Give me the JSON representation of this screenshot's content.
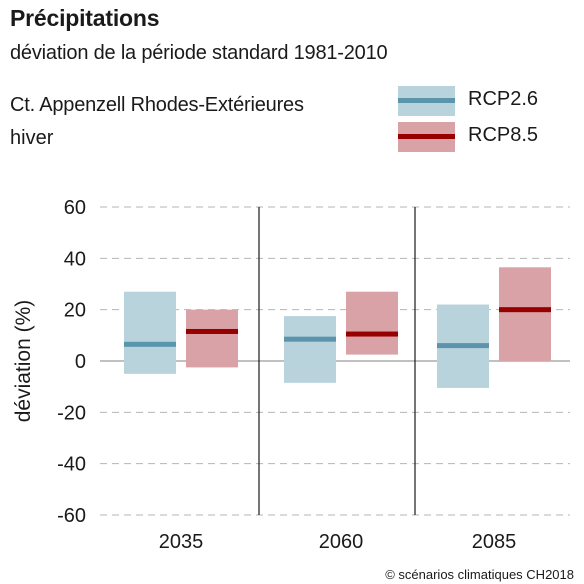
{
  "header": {
    "title": "Précipitations",
    "subtitle": "déviation de la période standard 1981-2010",
    "region": "Ct. Appenzell Rhodes-Extérieures",
    "season": "hiver"
  },
  "footer": {
    "copyright": "© scénarios climatiques CH2018"
  },
  "colors": {
    "rcp26_band": "#b8d3dc",
    "rcp26_line": "#5b95ac",
    "rcp85_band": "#d9a2a6",
    "rcp85_line": "#980000",
    "grid": "#b5b5b5",
    "zero": "#9a9a9a",
    "separator": "#1a1a1a"
  },
  "chart_data": {
    "type": "range-bar",
    "ylabel": "déviation (%)",
    "ylim": [
      -60,
      60
    ],
    "yticks": [
      60,
      40,
      20,
      0,
      -20,
      -40,
      -60
    ],
    "ytick_labels": [
      "60",
      "40",
      "20",
      "0",
      "-20",
      "-40",
      "-60"
    ],
    "categories": [
      "2035",
      "2060",
      "2085"
    ],
    "grid": "dashed horizontal",
    "legend_position": "top-right",
    "series": [
      {
        "name": "RCP2.6",
        "color_band": "#b8d3dc",
        "color_line": "#5b95ac",
        "low": [
          -5,
          -8.5,
          -10.5
        ],
        "median": [
          6.5,
          8.5,
          6
        ],
        "high": [
          27,
          17.5,
          22
        ]
      },
      {
        "name": "RCP8.5",
        "color_band": "#d9a2a6",
        "color_line": "#980000",
        "low": [
          -2.5,
          2.5,
          0
        ],
        "median": [
          11.5,
          10.5,
          20
        ],
        "high": [
          20,
          27,
          36.5
        ]
      }
    ]
  }
}
